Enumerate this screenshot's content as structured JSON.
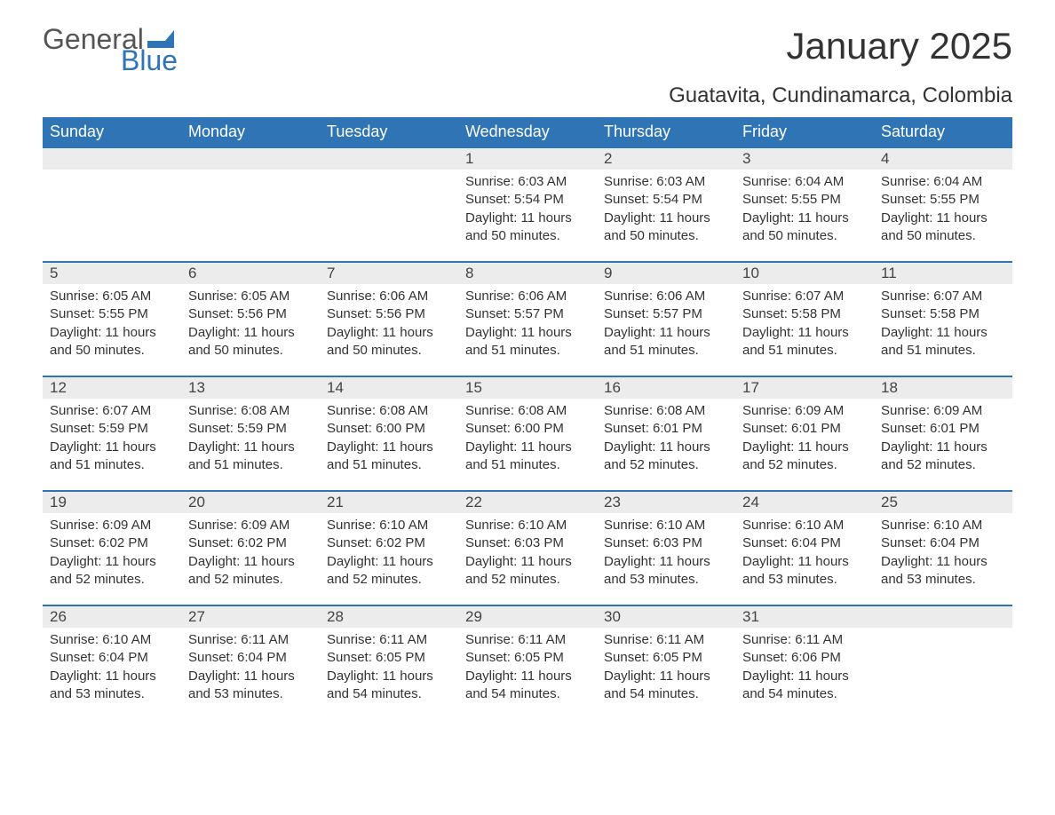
{
  "branding": {
    "logo_word1": "General",
    "logo_word2": "Blue",
    "logo_color1": "#555555",
    "logo_color2": "#2f75b5",
    "flag_color": "#2f75b5"
  },
  "title": "January 2025",
  "location": "Guatavita, Cundinamarca, Colombia",
  "header_bg": "#2f75b5",
  "header_text_color": "#ffffff",
  "daynum_bg": "#ececec",
  "rule_color": "#2f75b5",
  "text_color": "#333333",
  "columns": [
    "Sunday",
    "Monday",
    "Tuesday",
    "Wednesday",
    "Thursday",
    "Friday",
    "Saturday"
  ],
  "weeks": [
    [
      null,
      null,
      null,
      {
        "day": "1",
        "sunrise": "Sunrise: 6:03 AM",
        "sunset": "Sunset: 5:54 PM",
        "daylight": "Daylight: 11 hours and 50 minutes."
      },
      {
        "day": "2",
        "sunrise": "Sunrise: 6:03 AM",
        "sunset": "Sunset: 5:54 PM",
        "daylight": "Daylight: 11 hours and 50 minutes."
      },
      {
        "day": "3",
        "sunrise": "Sunrise: 6:04 AM",
        "sunset": "Sunset: 5:55 PM",
        "daylight": "Daylight: 11 hours and 50 minutes."
      },
      {
        "day": "4",
        "sunrise": "Sunrise: 6:04 AM",
        "sunset": "Sunset: 5:55 PM",
        "daylight": "Daylight: 11 hours and 50 minutes."
      }
    ],
    [
      {
        "day": "5",
        "sunrise": "Sunrise: 6:05 AM",
        "sunset": "Sunset: 5:55 PM",
        "daylight": "Daylight: 11 hours and 50 minutes."
      },
      {
        "day": "6",
        "sunrise": "Sunrise: 6:05 AM",
        "sunset": "Sunset: 5:56 PM",
        "daylight": "Daylight: 11 hours and 50 minutes."
      },
      {
        "day": "7",
        "sunrise": "Sunrise: 6:06 AM",
        "sunset": "Sunset: 5:56 PM",
        "daylight": "Daylight: 11 hours and 50 minutes."
      },
      {
        "day": "8",
        "sunrise": "Sunrise: 6:06 AM",
        "sunset": "Sunset: 5:57 PM",
        "daylight": "Daylight: 11 hours and 51 minutes."
      },
      {
        "day": "9",
        "sunrise": "Sunrise: 6:06 AM",
        "sunset": "Sunset: 5:57 PM",
        "daylight": "Daylight: 11 hours and 51 minutes."
      },
      {
        "day": "10",
        "sunrise": "Sunrise: 6:07 AM",
        "sunset": "Sunset: 5:58 PM",
        "daylight": "Daylight: 11 hours and 51 minutes."
      },
      {
        "day": "11",
        "sunrise": "Sunrise: 6:07 AM",
        "sunset": "Sunset: 5:58 PM",
        "daylight": "Daylight: 11 hours and 51 minutes."
      }
    ],
    [
      {
        "day": "12",
        "sunrise": "Sunrise: 6:07 AM",
        "sunset": "Sunset: 5:59 PM",
        "daylight": "Daylight: 11 hours and 51 minutes."
      },
      {
        "day": "13",
        "sunrise": "Sunrise: 6:08 AM",
        "sunset": "Sunset: 5:59 PM",
        "daylight": "Daylight: 11 hours and 51 minutes."
      },
      {
        "day": "14",
        "sunrise": "Sunrise: 6:08 AM",
        "sunset": "Sunset: 6:00 PM",
        "daylight": "Daylight: 11 hours and 51 minutes."
      },
      {
        "day": "15",
        "sunrise": "Sunrise: 6:08 AM",
        "sunset": "Sunset: 6:00 PM",
        "daylight": "Daylight: 11 hours and 51 minutes."
      },
      {
        "day": "16",
        "sunrise": "Sunrise: 6:08 AM",
        "sunset": "Sunset: 6:01 PM",
        "daylight": "Daylight: 11 hours and 52 minutes."
      },
      {
        "day": "17",
        "sunrise": "Sunrise: 6:09 AM",
        "sunset": "Sunset: 6:01 PM",
        "daylight": "Daylight: 11 hours and 52 minutes."
      },
      {
        "day": "18",
        "sunrise": "Sunrise: 6:09 AM",
        "sunset": "Sunset: 6:01 PM",
        "daylight": "Daylight: 11 hours and 52 minutes."
      }
    ],
    [
      {
        "day": "19",
        "sunrise": "Sunrise: 6:09 AM",
        "sunset": "Sunset: 6:02 PM",
        "daylight": "Daylight: 11 hours and 52 minutes."
      },
      {
        "day": "20",
        "sunrise": "Sunrise: 6:09 AM",
        "sunset": "Sunset: 6:02 PM",
        "daylight": "Daylight: 11 hours and 52 minutes."
      },
      {
        "day": "21",
        "sunrise": "Sunrise: 6:10 AM",
        "sunset": "Sunset: 6:02 PM",
        "daylight": "Daylight: 11 hours and 52 minutes."
      },
      {
        "day": "22",
        "sunrise": "Sunrise: 6:10 AM",
        "sunset": "Sunset: 6:03 PM",
        "daylight": "Daylight: 11 hours and 52 minutes."
      },
      {
        "day": "23",
        "sunrise": "Sunrise: 6:10 AM",
        "sunset": "Sunset: 6:03 PM",
        "daylight": "Daylight: 11 hours and 53 minutes."
      },
      {
        "day": "24",
        "sunrise": "Sunrise: 6:10 AM",
        "sunset": "Sunset: 6:04 PM",
        "daylight": "Daylight: 11 hours and 53 minutes."
      },
      {
        "day": "25",
        "sunrise": "Sunrise: 6:10 AM",
        "sunset": "Sunset: 6:04 PM",
        "daylight": "Daylight: 11 hours and 53 minutes."
      }
    ],
    [
      {
        "day": "26",
        "sunrise": "Sunrise: 6:10 AM",
        "sunset": "Sunset: 6:04 PM",
        "daylight": "Daylight: 11 hours and 53 minutes."
      },
      {
        "day": "27",
        "sunrise": "Sunrise: 6:11 AM",
        "sunset": "Sunset: 6:04 PM",
        "daylight": "Daylight: 11 hours and 53 minutes."
      },
      {
        "day": "28",
        "sunrise": "Sunrise: 6:11 AM",
        "sunset": "Sunset: 6:05 PM",
        "daylight": "Daylight: 11 hours and 54 minutes."
      },
      {
        "day": "29",
        "sunrise": "Sunrise: 6:11 AM",
        "sunset": "Sunset: 6:05 PM",
        "daylight": "Daylight: 11 hours and 54 minutes."
      },
      {
        "day": "30",
        "sunrise": "Sunrise: 6:11 AM",
        "sunset": "Sunset: 6:05 PM",
        "daylight": "Daylight: 11 hours and 54 minutes."
      },
      {
        "day": "31",
        "sunrise": "Sunrise: 6:11 AM",
        "sunset": "Sunset: 6:06 PM",
        "daylight": "Daylight: 11 hours and 54 minutes."
      },
      null
    ]
  ]
}
